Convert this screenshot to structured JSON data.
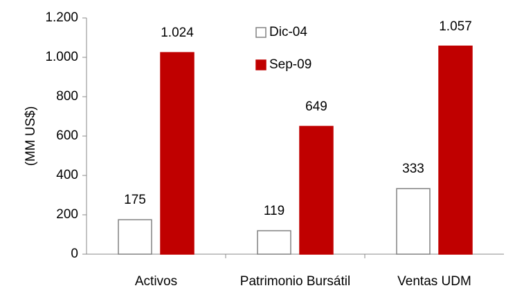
{
  "chart_data": {
    "type": "bar",
    "y_label": "(MM US$)",
    "categories": [
      "Activos",
      "Patrimonio Bursátil",
      "Ventas UDM"
    ],
    "series": [
      {
        "name": "Dic-04",
        "color": "#ffffff",
        "values": [
          175,
          119,
          333
        ]
      },
      {
        "name": "Sep-09",
        "color": "#c00000",
        "values": [
          1024,
          649,
          1057
        ],
        "value_labels": [
          "1.024",
          "649",
          "1.057"
        ]
      }
    ],
    "ylim": [
      0,
      1200
    ],
    "yticks": [
      0,
      200,
      400,
      600,
      800,
      {
        "value": 1000,
        "label": "1.000"
      },
      {
        "value": 1200,
        "label": "1.200"
      }
    ],
    "legend": "top"
  }
}
